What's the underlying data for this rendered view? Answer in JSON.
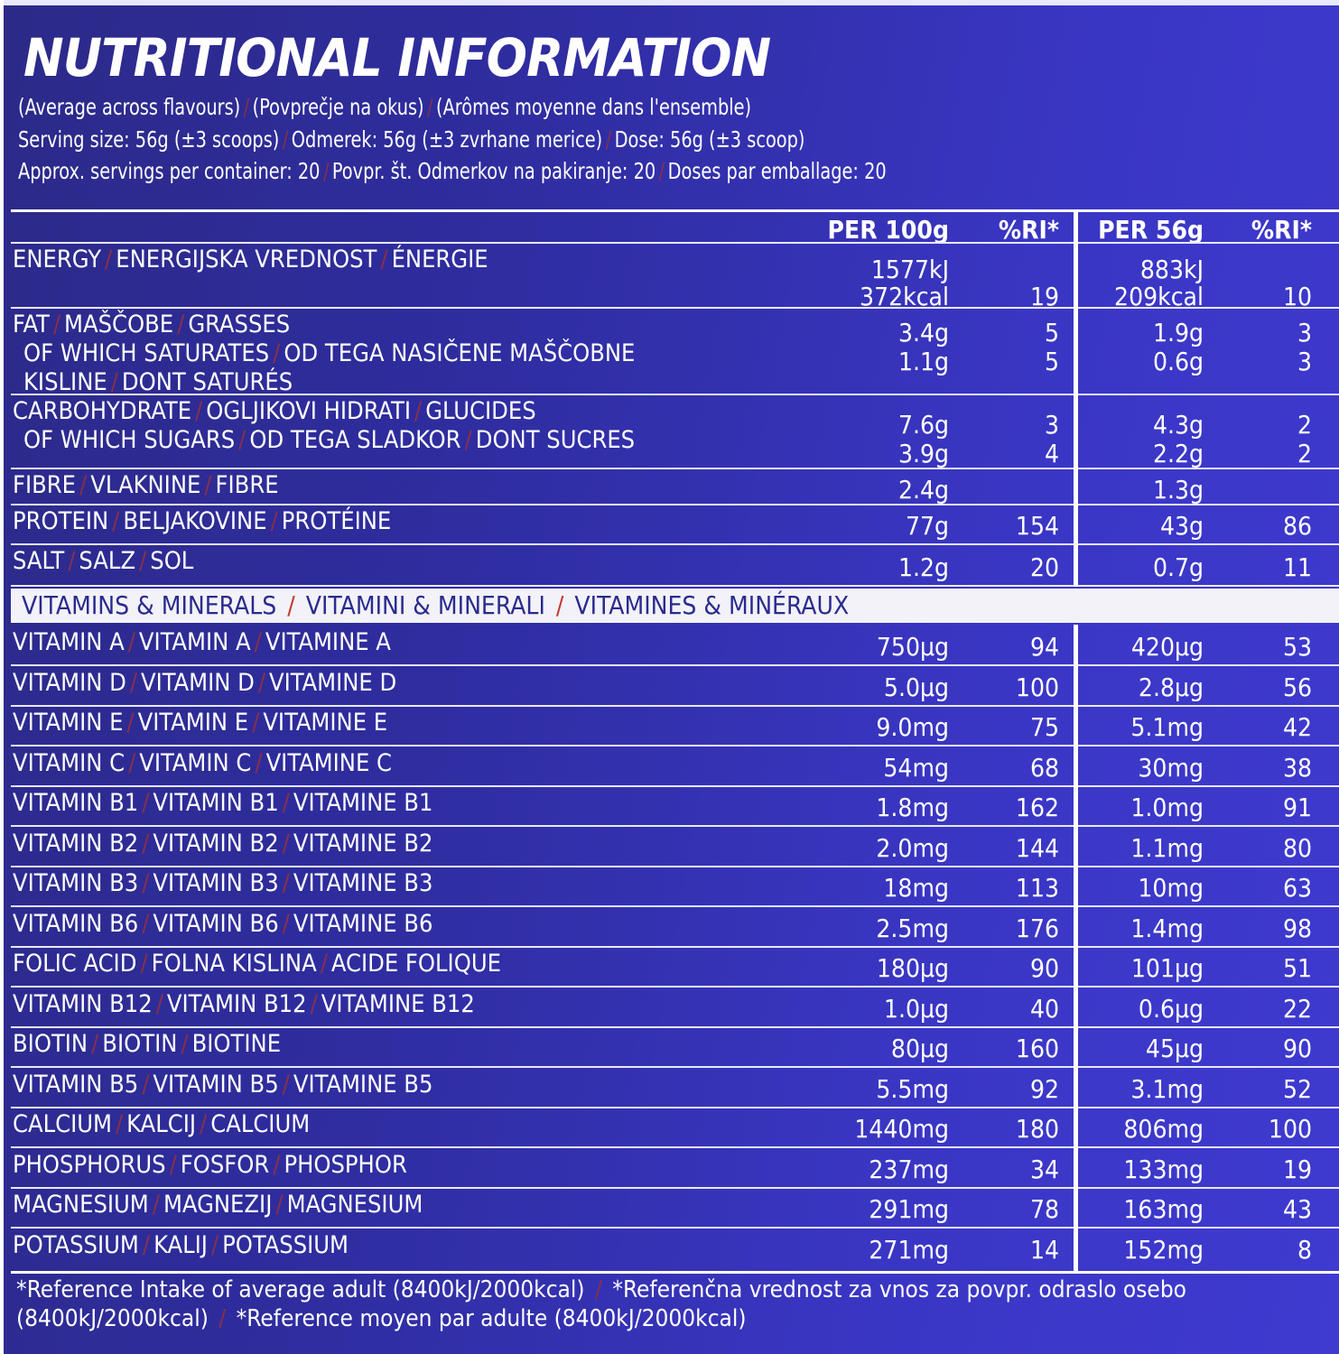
{
  "title": "NUTRITIONAL INFORMATION",
  "subtitle": {
    "line1": [
      "(Average across flavours)",
      "(Povprečje na okus)",
      "(Arômes moyenne dans l'ensemble)"
    ],
    "line2": [
      "Serving size: 56g (±3 scoops)",
      "Odmerek: 56g (±3 zvrhane merice)",
      "Dose: 56g (±3 scoop)"
    ],
    "line3": [
      "Approx. servings per container: 20",
      "Povpr. št. Odmerkov na pakiranje: 20",
      "Doses par emballage: 20"
    ]
  },
  "header": {
    "per100": "PER 100g",
    "ri1": "%RI*",
    "per56": "PER 56g",
    "ri2": "%RI*"
  },
  "rows": [
    {
      "label": [
        "ENERGY",
        "ENERGIJSKA VREDNOST",
        "ÉNERGIE"
      ],
      "lines": [
        {
          "v1": "1577kJ",
          "r1": "",
          "v2": "883kJ",
          "r2": ""
        },
        {
          "v1": "372kcal",
          "r1": "19",
          "v2": "209kcal",
          "r2": "10"
        }
      ]
    },
    {
      "label": [
        "FAT",
        "MAŠČOBE",
        "GRASSES"
      ],
      "sublabel": [
        "OF WHICH SATURATES",
        "OD TEGA NASIČENE MAŠČOBNE KISLINE",
        "DONT SATURÉS"
      ],
      "lines": [
        {
          "v1": "3.4g",
          "r1": "5",
          "v2": "1.9g",
          "r2": "3"
        },
        {
          "v1": "1.1g",
          "r1": "5",
          "v2": "0.6g",
          "r2": "3"
        }
      ]
    },
    {
      "label": [
        "CARBOHYDRATE",
        "OGLJIKOVI HIDRATI",
        "GLUCIDES"
      ],
      "sublabel": [
        "OF WHICH SUGARS",
        "OD TEGA SLADKOR",
        "DONT SUCRES"
      ],
      "lines": [
        {
          "v1": "7.6g",
          "r1": "3",
          "v2": "4.3g",
          "r2": "2"
        },
        {
          "v1": "3.9g",
          "r1": "4",
          "v2": "2.2g",
          "r2": "2"
        }
      ]
    },
    {
      "label": [
        "FIBRE",
        "VLAKNINE",
        "FIBRE"
      ],
      "lines": [
        {
          "v1": "2.4g",
          "r1": "",
          "v2": "1.3g",
          "r2": ""
        }
      ]
    },
    {
      "label": [
        "PROTEIN",
        "BELJAKOVINE",
        "PROTÉINE"
      ],
      "lines": [
        {
          "v1": "77g",
          "r1": "154",
          "v2": "43g",
          "r2": "86"
        }
      ]
    },
    {
      "label": [
        "SALT",
        "SALZ",
        "SOL"
      ],
      "lines": [
        {
          "v1": "1.2g",
          "r1": "20",
          "v2": "0.7g",
          "r2": "11"
        }
      ]
    }
  ],
  "vitamins_header": [
    "VITAMINS & MINERALS",
    "VITAMINI & MINERALI",
    "VITAMINES & MINÉRAUX"
  ],
  "vitamins": [
    {
      "label": [
        "VITAMIN A",
        "VITAMIN A",
        "VITAMINE A"
      ],
      "v1": "750µg",
      "r1": "94",
      "v2": "420µg",
      "r2": "53"
    },
    {
      "label": [
        "VITAMIN D",
        "VITAMIN D",
        "VITAMINE D"
      ],
      "v1": "5.0µg",
      "r1": "100",
      "v2": "2.8µg",
      "r2": "56"
    },
    {
      "label": [
        "VITAMIN E",
        "VITAMIN E",
        "VITAMINE E"
      ],
      "v1": "9.0mg",
      "r1": "75",
      "v2": "5.1mg",
      "r2": "42"
    },
    {
      "label": [
        "VITAMIN C",
        "VITAMIN C",
        "VITAMINE C"
      ],
      "v1": "54mg",
      "r1": "68",
      "v2": "30mg",
      "r2": "38"
    },
    {
      "label": [
        "VITAMIN B1",
        "VITAMIN B1",
        "VITAMINE B1"
      ],
      "v1": "1.8mg",
      "r1": "162",
      "v2": "1.0mg",
      "r2": "91"
    },
    {
      "label": [
        "VITAMIN B2",
        "VITAMIN B2",
        "VITAMINE B2"
      ],
      "v1": "2.0mg",
      "r1": "144",
      "v2": "1.1mg",
      "r2": "80"
    },
    {
      "label": [
        "VITAMIN B3",
        "VITAMIN B3",
        "VITAMINE B3"
      ],
      "v1": "18mg",
      "r1": "113",
      "v2": "10mg",
      "r2": "63"
    },
    {
      "label": [
        "VITAMIN B6",
        "VITAMIN B6",
        "VITAMINE B6"
      ],
      "v1": "2.5mg",
      "r1": "176",
      "v2": "1.4mg",
      "r2": "98"
    },
    {
      "label": [
        "FOLIC ACID",
        "FOLNA KISLINA",
        "ACIDE FOLIQUE"
      ],
      "v1": "180µg",
      "r1": "90",
      "v2": "101µg",
      "r2": "51"
    },
    {
      "label": [
        "VITAMIN B12",
        "VITAMIN B12",
        "VITAMINE B12"
      ],
      "v1": "1.0µg",
      "r1": "40",
      "v2": "0.6µg",
      "r2": "22"
    },
    {
      "label": [
        "BIOTIN",
        "BIOTIN",
        "BIOTINE"
      ],
      "v1": "80µg",
      "r1": "160",
      "v2": "45µg",
      "r2": "90"
    },
    {
      "label": [
        "VITAMIN B5",
        "VITAMIN B5",
        "VITAMINE B5"
      ],
      "v1": "5.5mg",
      "r1": "92",
      "v2": "3.1mg",
      "r2": "52"
    },
    {
      "label": [
        "CALCIUM",
        "KALCIJ",
        "CALCIUM"
      ],
      "v1": "1440mg",
      "r1": "180",
      "v2": "806mg",
      "r2": "100"
    },
    {
      "label": [
        "PHOSPHORUS",
        "FOSFOR",
        "PHOSPHOR"
      ],
      "v1": "237mg",
      "r1": "34",
      "v2": "133mg",
      "r2": "19"
    },
    {
      "label": [
        "MAGNESIUM",
        "MAGNEZIJ",
        "MAGNESIUM"
      ],
      "v1": "291mg",
      "r1": "78",
      "v2": "163mg",
      "r2": "43"
    },
    {
      "label": [
        "POTASSIUM",
        "KALIJ",
        "POTASSIUM"
      ],
      "v1": "271mg",
      "r1": "14",
      "v2": "152mg",
      "r2": "8"
    }
  ],
  "footnote": {
    "line1": [
      "*Reference Intake of average adult (8400kJ/2000kcal)",
      "*Referenčna vrednost za vnos za povpr. odraslo osebo"
    ],
    "line2": [
      "(8400kJ/2000kcal)",
      "*Reference moyen par adulte (8400kJ/2000kcal)"
    ]
  },
  "colors": {
    "background": "#2f2da0",
    "text": "#ffffff",
    "separator": "#8a2f4a",
    "band": "#f2f2f8"
  }
}
